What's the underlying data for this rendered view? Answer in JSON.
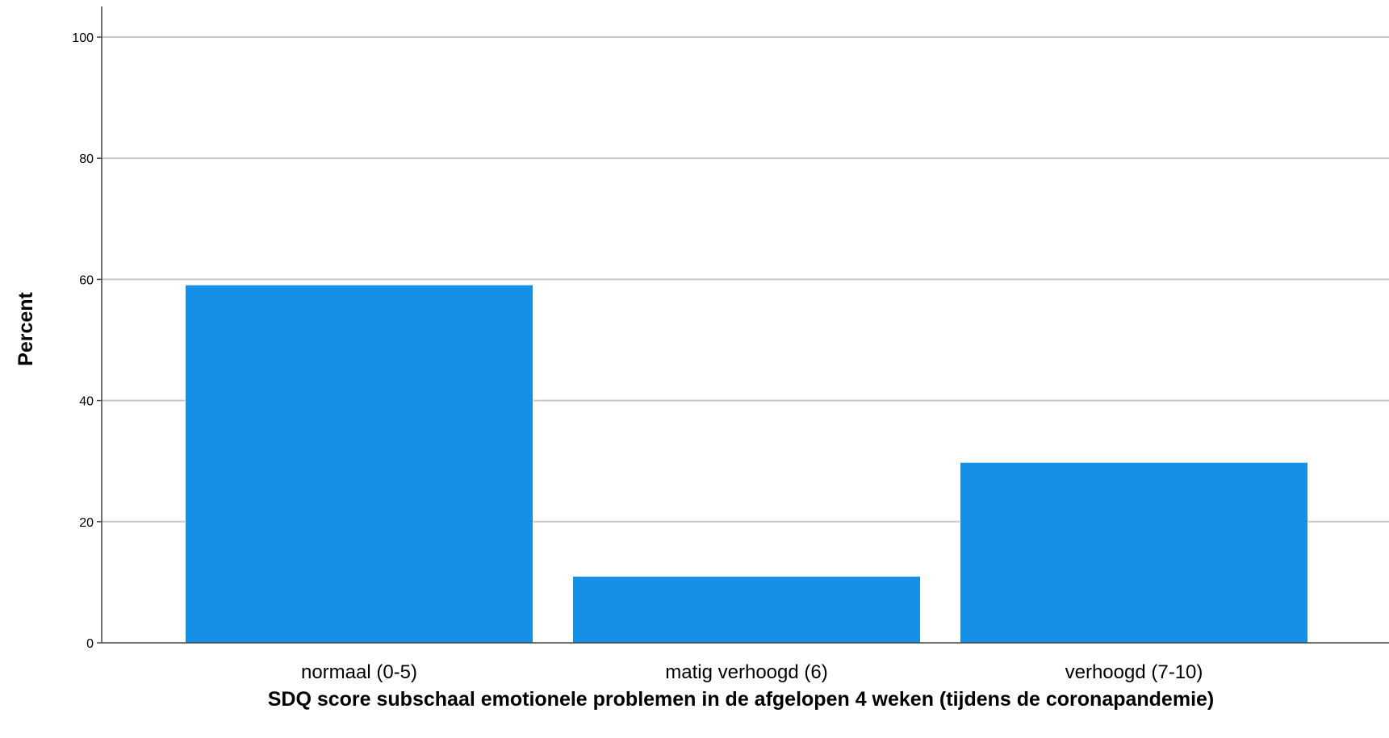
{
  "chart_data": {
    "type": "bar",
    "categories": [
      "normaal (0-5)",
      "matig verhoogd (6)",
      "verhoogd (7-10)"
    ],
    "values": [
      59.1,
      11.0,
      29.8
    ],
    "xlabel": "SDQ score subschaal emotionele problemen in de afgelopen 4 weken (tijdens de coronapandemie)",
    "ylabel": "Percent",
    "ylim": [
      0,
      100
    ],
    "yticks": [
      0,
      20,
      40,
      60,
      80,
      100
    ],
    "grid": true,
    "bar_color": "#1590e6",
    "grid_color": "#c8c8c8"
  }
}
